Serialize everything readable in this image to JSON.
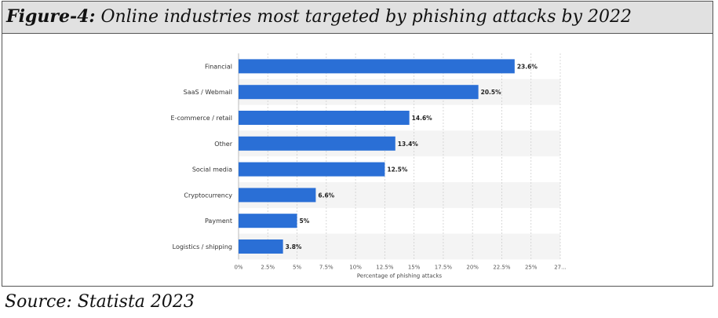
{
  "header": {
    "figure_label": "Figure-4:",
    "title_text": " Online industries most targeted by phishing attacks by 2022"
  },
  "source": "Source: Statista 2023",
  "chart_data": {
    "type": "bar",
    "orientation": "horizontal",
    "categories": [
      "Financial",
      "SaaS / Webmail",
      "E-commerce / retail",
      "Other",
      "Social media",
      "Cryptocurrency",
      "Payment",
      "Logistics / shipping"
    ],
    "values": [
      23.6,
      20.5,
      14.6,
      13.4,
      12.5,
      6.6,
      5,
      3.8
    ],
    "data_labels": [
      "23.6%",
      "20.5%",
      "14.6%",
      "13.4%",
      "12.5%",
      "6.6%",
      "5%",
      "3.8%"
    ],
    "xlabel": "Percentage of phishing attacks",
    "xticks": [
      "0%",
      "2.5%",
      "5%",
      "7.5%",
      "10%",
      "12.5%",
      "15%",
      "17.5%",
      "20%",
      "22.5%",
      "25%",
      "27..."
    ],
    "xlim": [
      0,
      27.5
    ],
    "grid": "vertical dashed",
    "bar_color": "#2a6fd6",
    "stripe_color": "#f4f4f4"
  }
}
